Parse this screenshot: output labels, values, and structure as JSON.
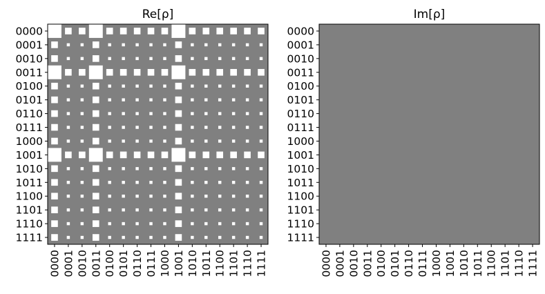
{
  "colors": {
    "background": "#808080",
    "positive": "#ffffff",
    "negative": "#000000",
    "axis": "#000000"
  },
  "chart_data": [
    {
      "type": "hinton",
      "title": "Re[ρ]",
      "xlabel": "",
      "ylabel": "",
      "row_labels": [
        "0000",
        "0001",
        "0010",
        "0011",
        "0100",
        "0101",
        "0110",
        "0111",
        "1000",
        "1001",
        "1010",
        "1011",
        "1100",
        "1101",
        "1110",
        "1111"
      ],
      "col_labels": [
        "0000",
        "0001",
        "0010",
        "0011",
        "0100",
        "0101",
        "0110",
        "0111",
        "1000",
        "1001",
        "1010",
        "1011",
        "1100",
        "1101",
        "1110",
        "1111"
      ],
      "value_scale_max": 0.3,
      "matrix": [
        [
          0.3,
          0.07,
          0.07,
          0.3,
          0.07,
          0.07,
          0.07,
          0.07,
          0.07,
          0.3,
          0.07,
          0.07,
          0.07,
          0.07,
          0.07,
          0.07
        ],
        [
          0.07,
          0.015,
          0.015,
          0.07,
          0.015,
          0.015,
          0.015,
          0.015,
          0.015,
          0.07,
          0.015,
          0.015,
          0.015,
          0.015,
          0.015,
          0.015
        ],
        [
          0.07,
          0.015,
          0.015,
          0.07,
          0.015,
          0.015,
          0.015,
          0.015,
          0.015,
          0.07,
          0.015,
          0.015,
          0.015,
          0.015,
          0.015,
          0.015
        ],
        [
          0.3,
          0.07,
          0.07,
          0.3,
          0.07,
          0.07,
          0.07,
          0.07,
          0.07,
          0.3,
          0.07,
          0.07,
          0.07,
          0.07,
          0.07,
          0.07
        ],
        [
          0.07,
          0.015,
          0.015,
          0.07,
          0.015,
          0.015,
          0.015,
          0.015,
          0.015,
          0.07,
          0.015,
          0.015,
          0.015,
          0.015,
          0.015,
          0.015
        ],
        [
          0.07,
          0.015,
          0.015,
          0.07,
          0.015,
          0.015,
          0.015,
          0.015,
          0.015,
          0.07,
          0.015,
          0.015,
          0.015,
          0.015,
          0.015,
          0.015
        ],
        [
          0.07,
          0.015,
          0.015,
          0.07,
          0.015,
          0.015,
          0.015,
          0.015,
          0.015,
          0.07,
          0.015,
          0.015,
          0.015,
          0.015,
          0.015,
          0.015
        ],
        [
          0.07,
          0.015,
          0.015,
          0.07,
          0.015,
          0.015,
          0.015,
          0.015,
          0.015,
          0.07,
          0.015,
          0.015,
          0.015,
          0.015,
          0.015,
          0.015
        ],
        [
          0.07,
          0.015,
          0.015,
          0.07,
          0.015,
          0.015,
          0.015,
          0.015,
          0.015,
          0.07,
          0.015,
          0.015,
          0.015,
          0.015,
          0.015,
          0.015
        ],
        [
          0.3,
          0.07,
          0.07,
          0.3,
          0.07,
          0.07,
          0.07,
          0.07,
          0.07,
          0.3,
          0.07,
          0.07,
          0.07,
          0.07,
          0.07,
          0.07
        ],
        [
          0.07,
          0.015,
          0.015,
          0.07,
          0.015,
          0.015,
          0.015,
          0.015,
          0.015,
          0.07,
          0.015,
          0.015,
          0.015,
          0.015,
          0.015,
          0.015
        ],
        [
          0.07,
          0.015,
          0.015,
          0.07,
          0.015,
          0.015,
          0.015,
          0.015,
          0.015,
          0.07,
          0.015,
          0.015,
          0.015,
          0.015,
          0.015,
          0.015
        ],
        [
          0.07,
          0.015,
          0.015,
          0.07,
          0.015,
          0.015,
          0.015,
          0.015,
          0.015,
          0.07,
          0.015,
          0.015,
          0.015,
          0.015,
          0.015,
          0.015
        ],
        [
          0.07,
          0.015,
          0.015,
          0.07,
          0.015,
          0.015,
          0.015,
          0.015,
          0.015,
          0.07,
          0.015,
          0.015,
          0.015,
          0.015,
          0.015,
          0.015
        ],
        [
          0.07,
          0.015,
          0.015,
          0.07,
          0.015,
          0.015,
          0.015,
          0.015,
          0.015,
          0.07,
          0.015,
          0.015,
          0.015,
          0.015,
          0.015,
          0.015
        ],
        [
          0.07,
          0.015,
          0.015,
          0.07,
          0.015,
          0.015,
          0.015,
          0.015,
          0.015,
          0.07,
          0.015,
          0.015,
          0.015,
          0.015,
          0.015,
          0.015
        ]
      ]
    },
    {
      "type": "hinton",
      "title": "Im[ρ]",
      "xlabel": "",
      "ylabel": "",
      "row_labels": [
        "0000",
        "0001",
        "0010",
        "0011",
        "0100",
        "0101",
        "0110",
        "0111",
        "1000",
        "1001",
        "1010",
        "1011",
        "1100",
        "1101",
        "1110",
        "1111"
      ],
      "col_labels": [
        "0000",
        "0001",
        "0010",
        "0011",
        "0100",
        "0101",
        "0110",
        "0111",
        "1000",
        "1001",
        "1010",
        "1011",
        "1100",
        "1101",
        "1110",
        "1111"
      ],
      "value_scale_max": 0.3,
      "matrix": "all zeros (16×16)"
    }
  ]
}
